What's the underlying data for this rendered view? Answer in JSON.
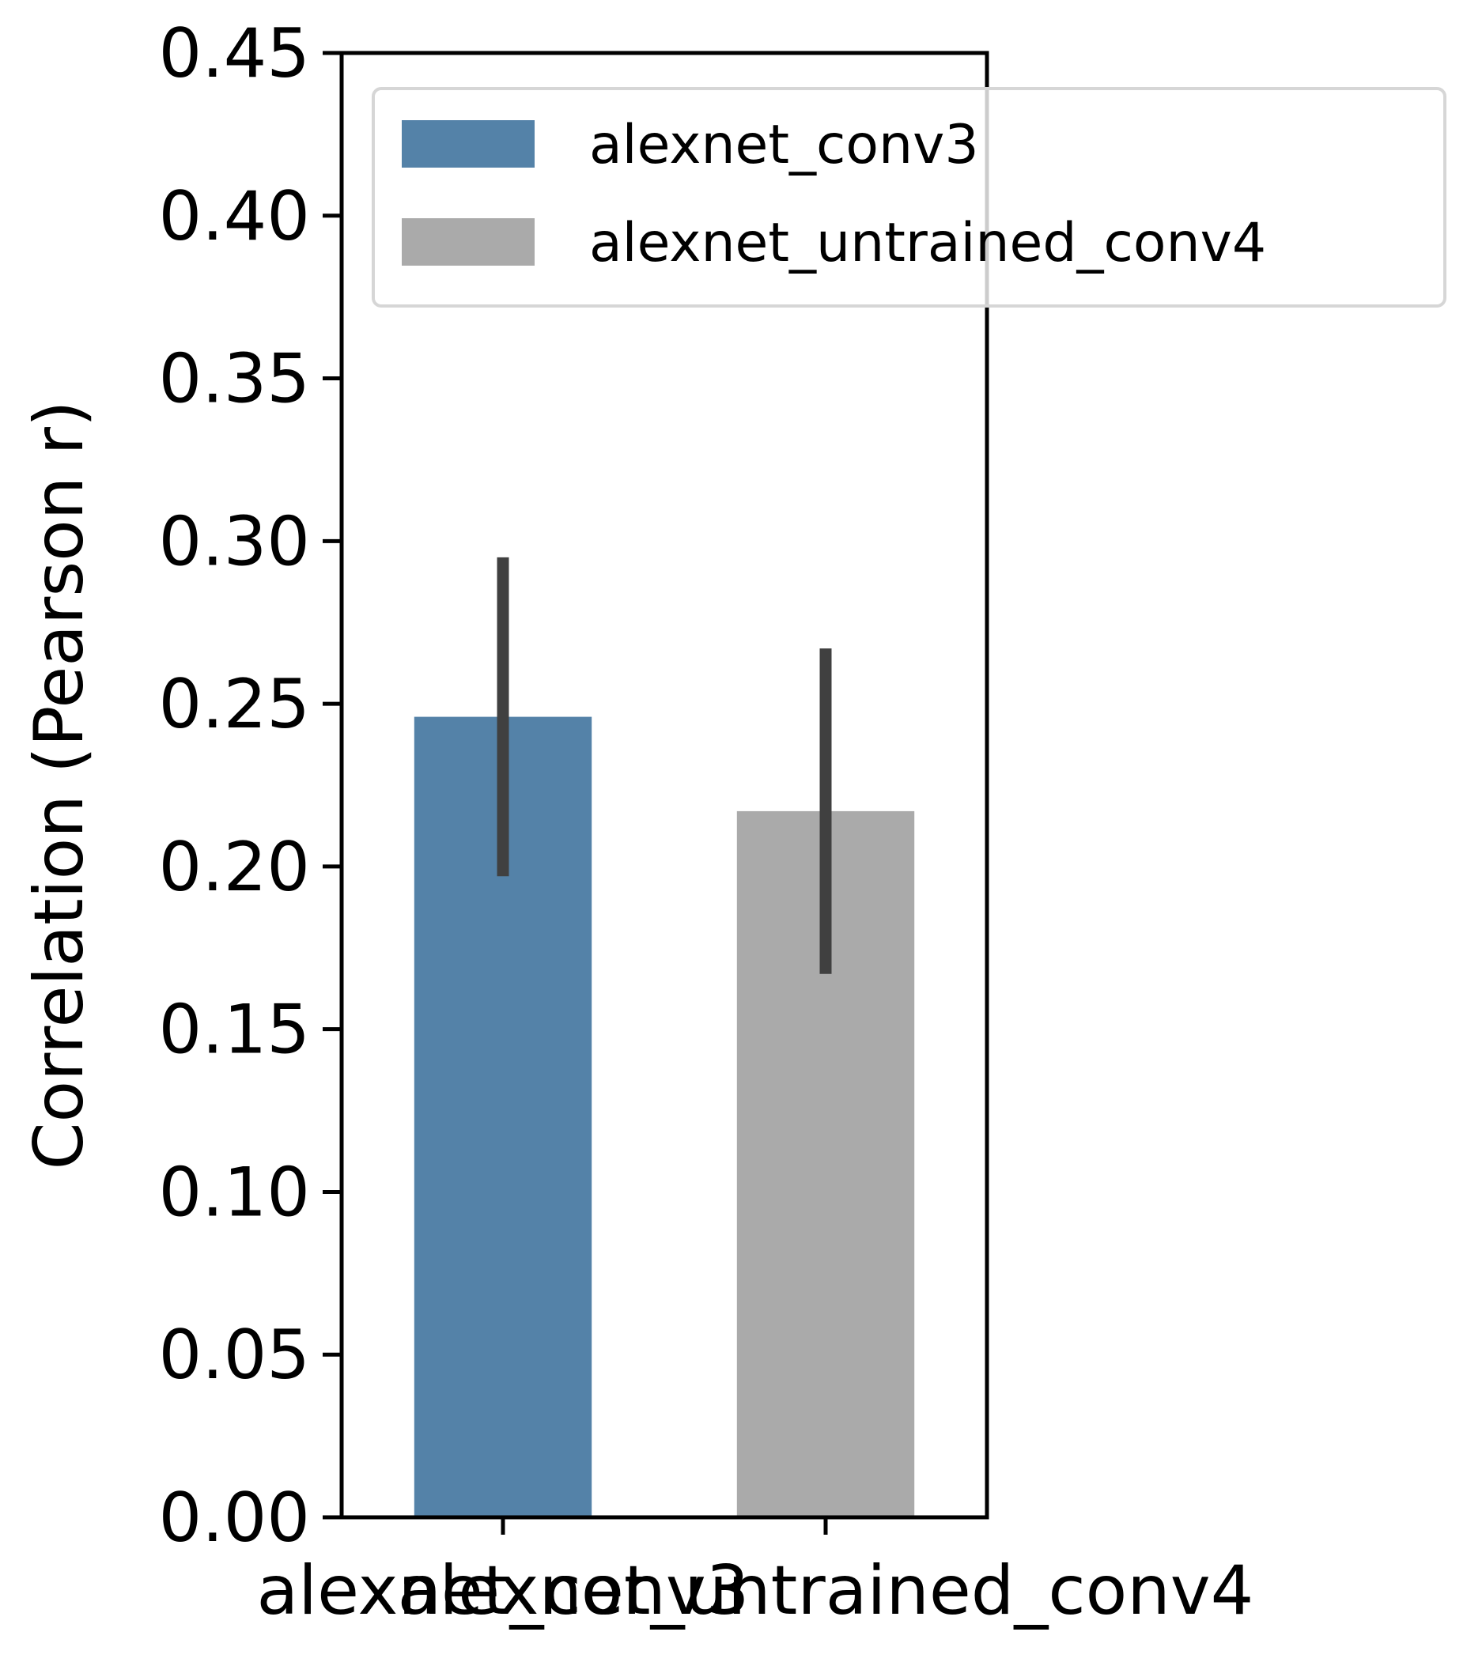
{
  "chart_data": {
    "type": "bar",
    "categories": [
      "alexnet_conv3",
      "alexnet_untrained_conv4"
    ],
    "values": [
      0.246,
      0.217
    ],
    "error_bars": [
      [
        0.197,
        0.295
      ],
      [
        0.167,
        0.267
      ]
    ],
    "colors": [
      "#5482a8",
      "#aaaaaa"
    ],
    "error_bar_color": "#404040",
    "ylabel": "Correlation (Pearson r)",
    "xlabel": "",
    "ylim": [
      0,
      0.45
    ],
    "yticks": [
      "0.00",
      "0.05",
      "0.10",
      "0.15",
      "0.20",
      "0.25",
      "0.30",
      "0.35",
      "0.40",
      "0.45"
    ],
    "grid": false,
    "legend": {
      "placement": "top-right",
      "entries": [
        {
          "label": "alexnet_conv3",
          "color": "#5482a8"
        },
        {
          "label": "alexnet_untrained_conv4",
          "color": "#aaaaaa"
        }
      ]
    }
  }
}
